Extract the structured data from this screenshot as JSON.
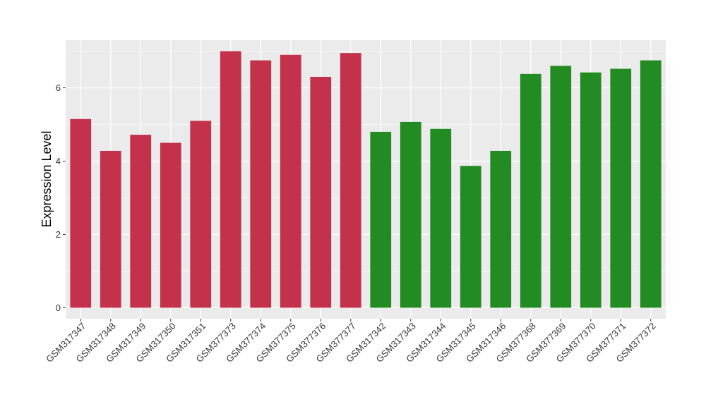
{
  "chart_data": {
    "type": "bar",
    "title": "",
    "xlabel": "",
    "ylabel": "Expression Level",
    "ylim": [
      -0.3,
      7.3
    ],
    "yticks": [
      0,
      2,
      4,
      6
    ],
    "grid": true,
    "legend": "none",
    "categories": [
      "GSM317347",
      "GSM317348",
      "GSM317349",
      "GSM317350",
      "GSM317351",
      "GSM377373",
      "GSM377374",
      "GSM377375",
      "GSM377376",
      "GSM377377",
      "GSM317342",
      "GSM317343",
      "GSM317344",
      "GSM317345",
      "GSM317346",
      "GSM377368",
      "GSM377369",
      "GSM377370",
      "GSM377371",
      "GSM377372"
    ],
    "values": [
      5.15,
      4.28,
      4.72,
      4.5,
      5.1,
      7.0,
      6.75,
      6.9,
      6.3,
      6.95,
      4.8,
      5.07,
      4.88,
      3.87,
      4.28,
      6.38,
      6.6,
      6.42,
      6.52,
      6.75
    ],
    "bar_colors": [
      "#c4314b",
      "#c4314b",
      "#c4314b",
      "#c4314b",
      "#c4314b",
      "#c4314b",
      "#c4314b",
      "#c4314b",
      "#c4314b",
      "#c4314b",
      "#228b22",
      "#228b22",
      "#228b22",
      "#228b22",
      "#228b22",
      "#228b22",
      "#228b22",
      "#228b22",
      "#228b22",
      "#228b22"
    ]
  },
  "colors": {
    "panel_background": "#ebebeb",
    "grid": "#ffffff",
    "group_1": "#c4314b",
    "group_2": "#228b22"
  }
}
